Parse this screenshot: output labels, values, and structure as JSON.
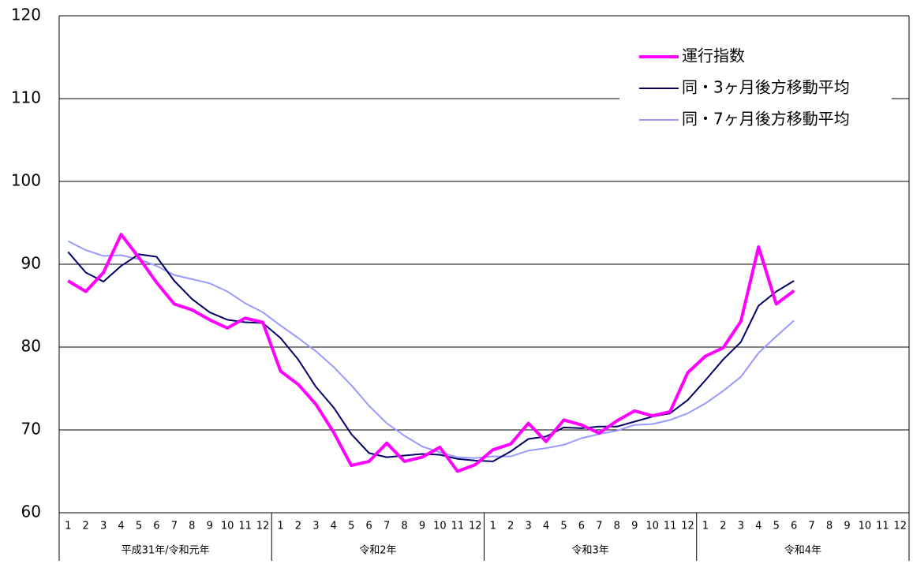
{
  "chart_data": {
    "type": "line",
    "categories": [
      "1",
      "2",
      "3",
      "4",
      "5",
      "6",
      "7",
      "8",
      "9",
      "10",
      "11",
      "12",
      "1",
      "2",
      "3",
      "4",
      "5",
      "6",
      "7",
      "8",
      "9",
      "10",
      "11",
      "12",
      "1",
      "2",
      "3",
      "4",
      "5",
      "6",
      "7",
      "8",
      "9",
      "10",
      "11",
      "12",
      "1",
      "2",
      "3",
      "4",
      "5",
      "6",
      "7",
      "8",
      "9",
      "10",
      "11",
      "12"
    ],
    "category_groups": [
      "平成31年/令和元年",
      "令和2年",
      "令和3年",
      "令和4年"
    ],
    "series": [
      {
        "name": "運行指数",
        "color": "#ff00ff",
        "width": 4,
        "values": [
          88.0,
          86.7,
          89.0,
          93.6,
          90.8,
          87.8,
          85.2,
          84.5,
          83.3,
          82.3,
          83.5,
          83.0,
          77.1,
          75.5,
          73.1,
          69.7,
          65.7,
          66.2,
          68.4,
          66.2,
          66.7,
          67.9,
          65.0,
          65.8,
          67.6,
          68.3,
          70.8,
          68.6,
          71.2,
          70.6,
          69.6,
          71.1,
          72.3,
          71.7,
          72.2,
          76.9,
          78.9,
          79.9,
          83.1,
          92.1,
          85.2,
          86.8,
          null,
          null,
          null,
          null,
          null,
          null
        ]
      },
      {
        "name": "同・3ヶ月後方移動平均",
        "color": "#000066",
        "width": 2,
        "values": [
          91.5,
          89.0,
          87.9,
          89.8,
          91.2,
          90.9,
          88.0,
          85.8,
          84.2,
          83.3,
          83.0,
          82.9,
          81.1,
          78.5,
          75.2,
          72.7,
          69.5,
          67.2,
          66.7,
          66.9,
          67.1,
          67.0,
          66.5,
          66.3,
          66.2,
          67.4,
          68.9,
          69.2,
          70.3,
          70.2,
          70.4,
          70.4,
          71.0,
          71.6,
          72.0,
          73.6,
          76.0,
          78.5,
          80.6,
          85.0,
          86.7,
          88.0,
          null,
          null,
          null,
          null,
          null,
          null
        ]
      },
      {
        "name": "同・7ヶ月後方移動平均",
        "color": "#9999ff",
        "width": 2,
        "values": [
          92.8,
          91.7,
          91.0,
          91.1,
          90.6,
          89.8,
          88.7,
          88.2,
          87.7,
          86.7,
          85.3,
          84.2,
          82.6,
          81.1,
          79.5,
          77.6,
          75.4,
          72.9,
          70.8,
          69.3,
          68.0,
          67.3,
          66.7,
          66.6,
          66.8,
          66.8,
          67.5,
          67.8,
          68.2,
          69.0,
          69.5,
          69.9,
          70.6,
          70.7,
          71.2,
          72.0,
          73.2,
          74.7,
          76.4,
          79.3,
          81.3,
          83.2,
          null,
          null,
          null,
          null,
          null,
          null
        ]
      }
    ],
    "ylim": [
      60,
      120
    ],
    "yticks": [
      60,
      70,
      80,
      90,
      100,
      110,
      120
    ],
    "grid": true,
    "legend": "upper right"
  }
}
